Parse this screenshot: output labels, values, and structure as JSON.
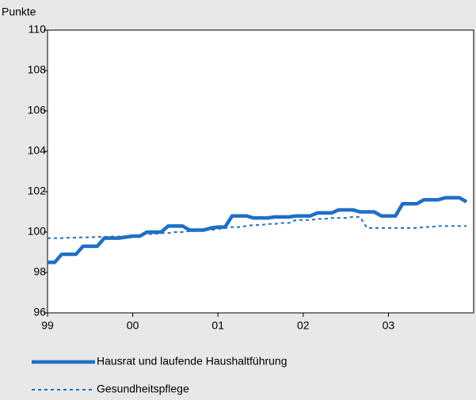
{
  "chart_data": {
    "type": "line",
    "y_label": "Punkte",
    "categories": [
      "99",
      null,
      null,
      null,
      null,
      null,
      null,
      null,
      null,
      null,
      null,
      null,
      "00",
      null,
      null,
      null,
      null,
      null,
      null,
      null,
      null,
      null,
      null,
      null,
      "01",
      null,
      null,
      null,
      null,
      null,
      null,
      null,
      null,
      null,
      null,
      null,
      "02",
      null,
      null,
      null,
      null,
      null,
      null,
      null,
      null,
      null,
      null,
      null,
      "03",
      null,
      null,
      null,
      null,
      null,
      null,
      null,
      null,
      null,
      null,
      null
    ],
    "series": [
      {
        "name": "Hausrat und laufende Haushaltführung",
        "color": "#1f6fc5",
        "dash": "solid",
        "values": [
          98.5,
          98.5,
          98.9,
          98.9,
          98.9,
          99.3,
          99.3,
          99.3,
          99.7,
          99.7,
          99.7,
          99.75,
          99.8,
          99.8,
          100.0,
          100.0,
          100.0,
          100.3,
          100.3,
          100.3,
          100.1,
          100.1,
          100.1,
          100.2,
          100.25,
          100.25,
          100.8,
          100.8,
          100.8,
          100.7,
          100.7,
          100.7,
          100.75,
          100.75,
          100.75,
          100.8,
          100.8,
          100.8,
          100.95,
          100.95,
          100.95,
          101.1,
          101.1,
          101.1,
          101.0,
          101.0,
          101.0,
          100.8,
          100.8,
          100.8,
          101.4,
          101.4,
          101.4,
          101.6,
          101.6,
          101.6,
          101.7,
          101.7,
          101.7,
          101.5
        ]
      },
      {
        "name": "Gesundheitspflege",
        "color": "#1f6fc5",
        "dash": "dotted",
        "values": [
          99.7,
          99.7,
          99.7,
          99.72,
          99.72,
          99.74,
          99.74,
          99.76,
          99.76,
          99.78,
          99.78,
          99.8,
          99.85,
          99.85,
          99.9,
          99.9,
          99.95,
          99.95,
          100.0,
          100.0,
          100.05,
          100.05,
          100.1,
          100.1,
          100.15,
          100.2,
          100.25,
          100.25,
          100.3,
          100.35,
          100.35,
          100.4,
          100.4,
          100.45,
          100.45,
          100.6,
          100.6,
          100.6,
          100.65,
          100.65,
          100.7,
          100.7,
          100.7,
          100.75,
          100.75,
          100.2,
          100.2,
          100.2,
          100.2,
          100.2,
          100.2,
          100.2,
          100.2,
          100.25,
          100.25,
          100.3,
          100.3,
          100.3,
          100.3,
          100.3
        ]
      }
    ],
    "ylim": [
      96,
      110
    ],
    "yticks": [
      96,
      98,
      100,
      102,
      104,
      106,
      108,
      110
    ]
  }
}
